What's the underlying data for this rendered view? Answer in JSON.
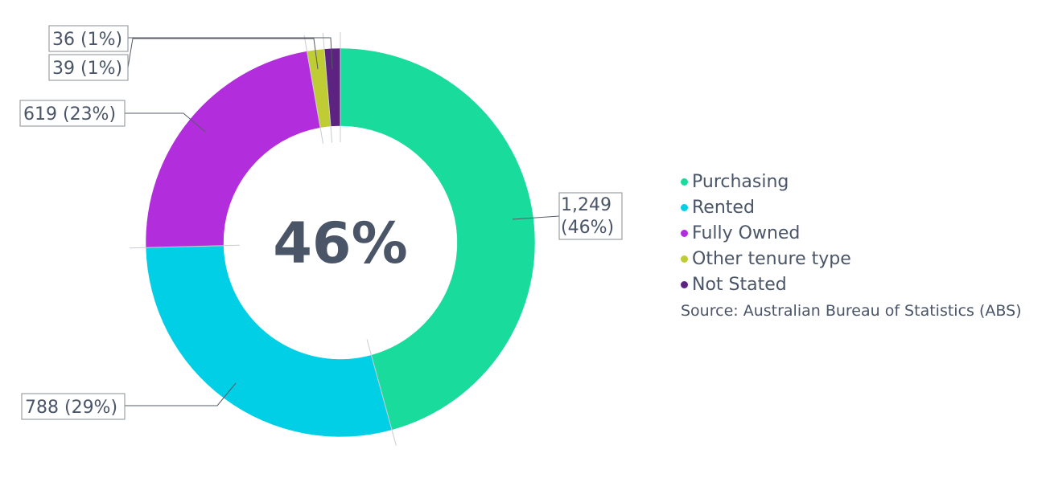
{
  "chart_data": {
    "type": "pie",
    "style": "donut",
    "center_label": "46%",
    "categories": [
      "Purchasing",
      "Rented",
      "Fully Owned",
      "Other tenure type",
      "Not Stated"
    ],
    "values": [
      1249,
      788,
      619,
      39,
      36
    ],
    "data_labels": [
      "1,249 (46%)",
      "788 (29%)",
      "619 (23%)",
      "39 (1%)",
      "36 (1%)"
    ],
    "colors": [
      "#19db9b",
      "#00cfe5",
      "#b22ddc",
      "#bfcc33",
      "#5d2381"
    ],
    "legend_placement": "right",
    "source": "Source: Australian Bureau of Statistics (ABS)"
  }
}
